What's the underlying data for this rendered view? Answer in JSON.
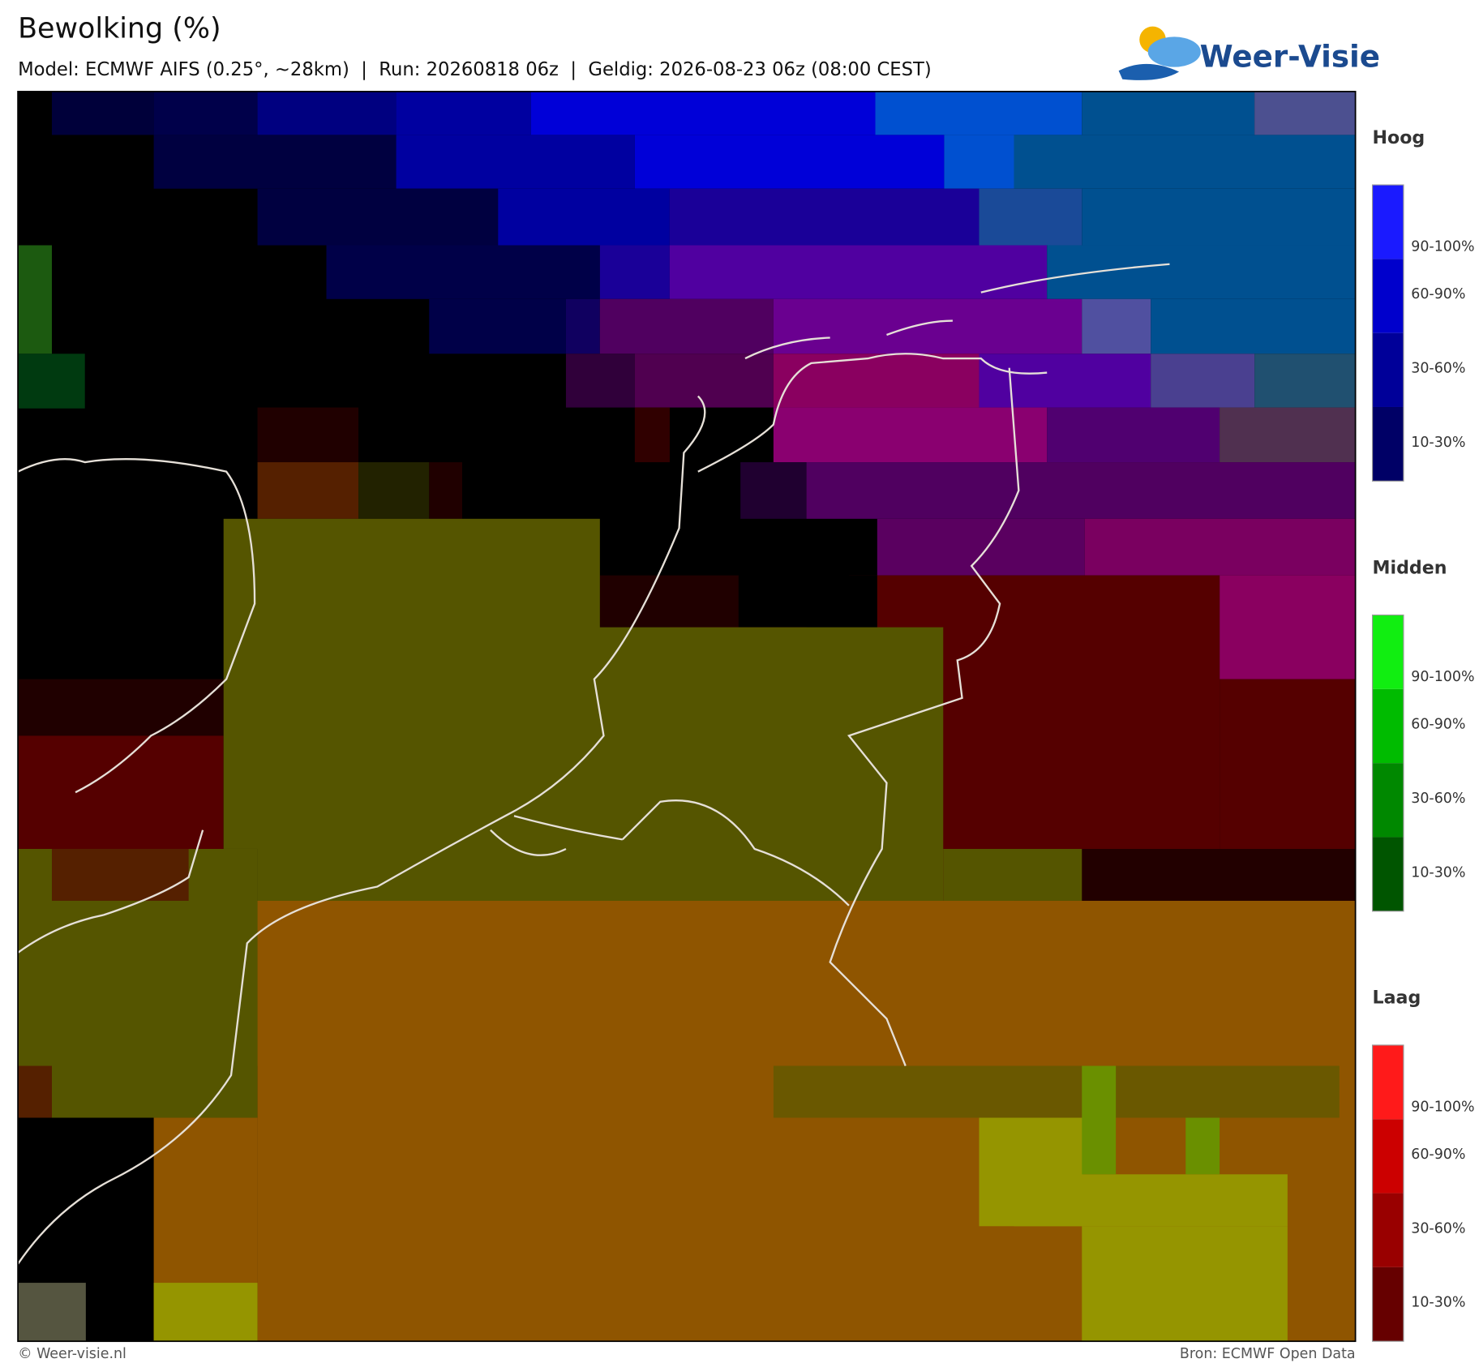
{
  "header": {
    "title": "Bewolking (%)",
    "subtitle": "Model: ECMWF AIFS (0.25°, ~28km)  |  Run: 20260818 06z  |  Geldig: 2026-08-23 06z (08:00 CEST)",
    "logo": "Weer-Visie"
  },
  "legend": [
    {
      "title": "Hoog",
      "labels": [
        "90-100%",
        "60-90%",
        "30-60%",
        "10-30%"
      ]
    },
    {
      "title": "Midden",
      "labels": [
        "90-100%",
        "60-90%",
        "30-60%",
        "10-30%"
      ]
    },
    {
      "title": "Laag",
      "labels": [
        "90-100%",
        "60-90%",
        "30-60%",
        "10-30%"
      ]
    }
  ],
  "footer": {
    "left": "© Weer-visie.nl",
    "right": "Bron: ECMWF Open Data"
  }
}
